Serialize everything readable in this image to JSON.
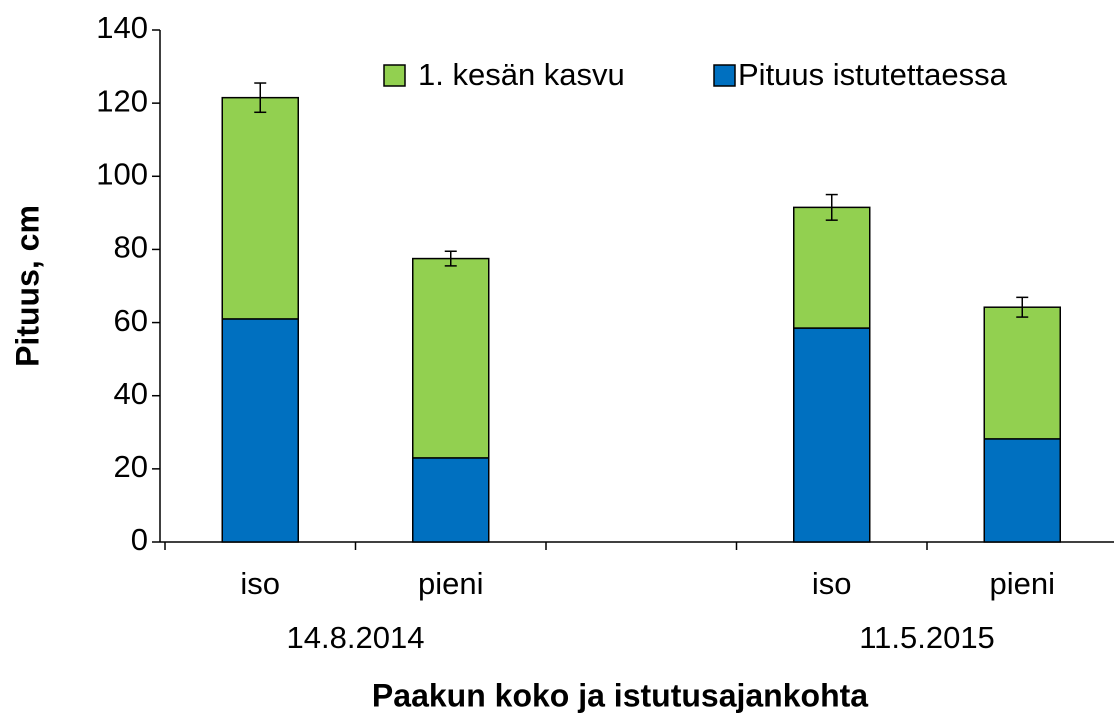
{
  "chart_data": {
    "type": "stacked_bar",
    "x_label": "Paakun koko ja istutusajankohta",
    "y_label": "Pituus, cm",
    "categories": [
      "iso",
      "pieni",
      null,
      "iso",
      "pieni"
    ],
    "group_labels": [
      "14.8.2014",
      "11.5.2015"
    ],
    "series": [
      {
        "name": "1. kesän kasvu",
        "color": "#92d050",
        "values": [
          60.5,
          54.5,
          null,
          33,
          36
        ],
        "errors": [
          4,
          2,
          null,
          3.5,
          2.7
        ]
      },
      {
        "name": "Pituus istutettaessa",
        "color": "#0070c0",
        "values": [
          61,
          23,
          null,
          58.5,
          28.2
        ]
      }
    ],
    "ylim": [
      0,
      140
    ],
    "yticks": [
      0,
      20,
      40,
      60,
      80,
      100,
      120,
      140
    ],
    "legend": "top-right"
  }
}
